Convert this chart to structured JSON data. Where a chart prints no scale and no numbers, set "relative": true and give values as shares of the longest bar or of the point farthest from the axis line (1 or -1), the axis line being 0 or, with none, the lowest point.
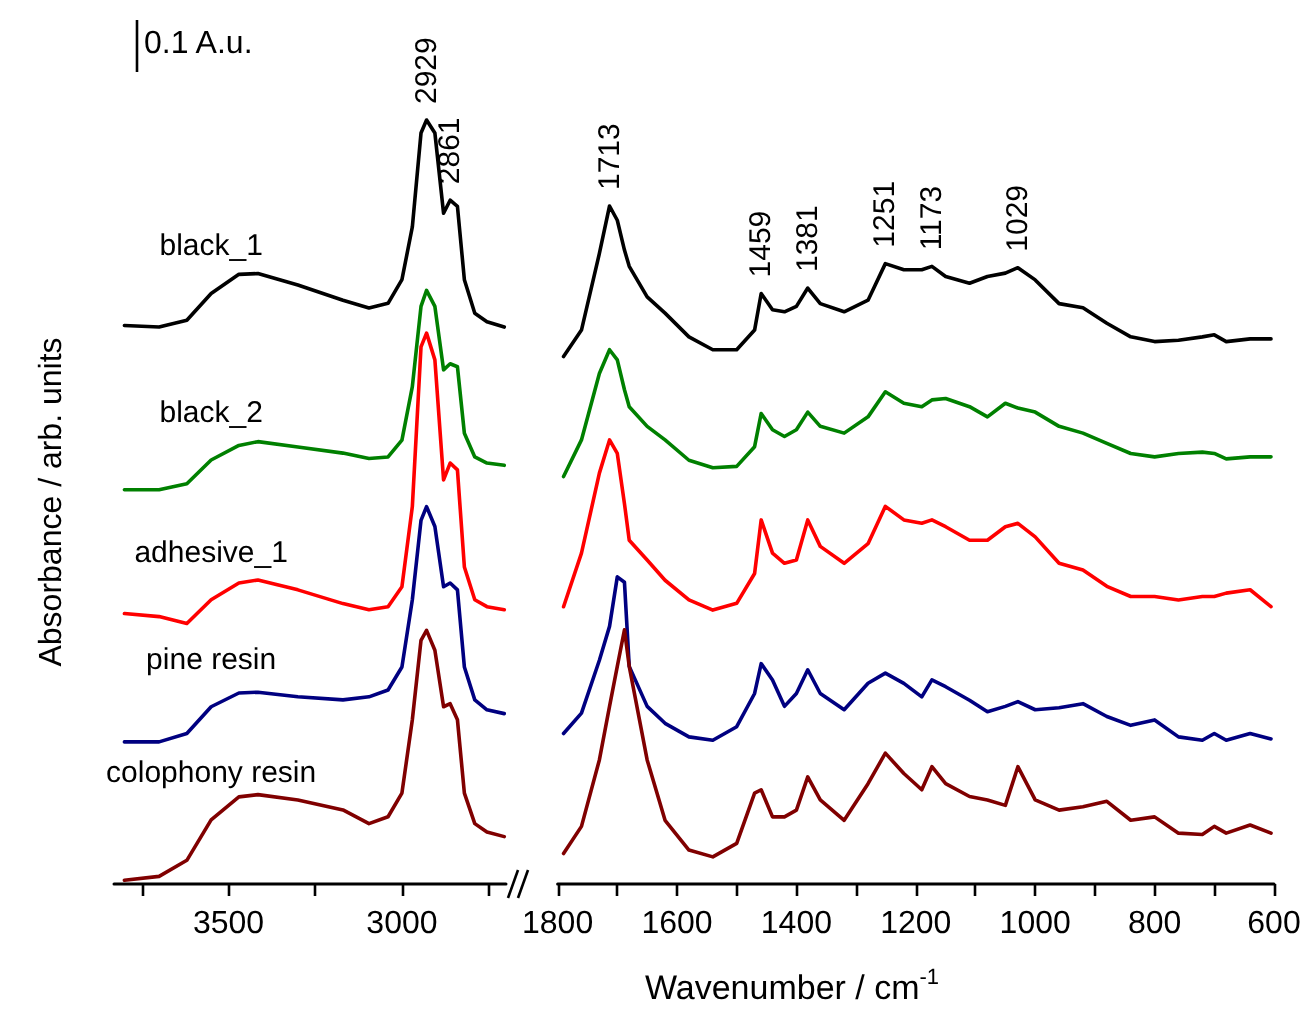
{
  "chart_data": [
    {
      "type": "line",
      "ylabel": "Absorbance / arb. units",
      "relative": true,
      "xlim": [
        3830,
        2700
      ],
      "xticks": [
        {
          "value": 3750,
          "label": null
        },
        3500,
        {
          "value": 3250,
          "label": null
        },
        3000,
        {
          "value": 2750,
          "label": null
        }
      ],
      "x": [
        3800,
        3700,
        3620,
        3550,
        3470,
        3415,
        3300,
        3170,
        3095,
        3040,
        3000,
        2970,
        2945,
        2929,
        2905,
        2880,
        2861,
        2840,
        2820,
        2790,
        2755,
        2705
      ],
      "series": [
        {
          "name": "black_1",
          "color": "#000000",
          "values": [
            0.731,
            0.729,
            0.738,
            0.773,
            0.798,
            0.799,
            0.784,
            0.764,
            0.754,
            0.76,
            0.791,
            0.86,
            0.983,
            1,
            0.983,
            0.878,
            0.895,
            0.887,
            0.791,
            0.747,
            0.736,
            0.729
          ]
        },
        {
          "name": "black_2",
          "color": "#008000",
          "values": [
            0.516,
            0.516,
            0.524,
            0.555,
            0.574,
            0.579,
            0.572,
            0.564,
            0.557,
            0.559,
            0.581,
            0.651,
            0.756,
            0.777,
            0.756,
            0.673,
            0.681,
            0.677,
            0.59,
            0.559,
            0.551,
            0.548
          ]
        },
        {
          "name": "adhesive_1",
          "color": "#ff0000",
          "values": [
            0.354,
            0.35,
            0.341,
            0.372,
            0.394,
            0.398,
            0.385,
            0.367,
            0.359,
            0.363,
            0.389,
            0.494,
            0.703,
            0.721,
            0.686,
            0.529,
            0.551,
            0.542,
            0.415,
            0.372,
            0.363,
            0.359
          ]
        },
        {
          "name": "pine resin",
          "color": "#000080",
          "values": [
            0.186,
            0.186,
            0.197,
            0.232,
            0.25,
            0.251,
            0.245,
            0.241,
            0.245,
            0.254,
            0.284,
            0.372,
            0.476,
            0.494,
            0.468,
            0.389,
            0.394,
            0.385,
            0.284,
            0.241,
            0.228,
            0.223
          ]
        },
        {
          "name": "colophony resin",
          "color": "#800000",
          "values": [
            0.005,
            0.01,
            0.031,
            0.084,
            0.114,
            0.117,
            0.11,
            0.097,
            0.079,
            0.088,
            0.119,
            0.215,
            0.319,
            0.332,
            0.306,
            0.232,
            0.236,
            0.215,
            0.119,
            0.079,
            0.068,
            0.062
          ]
        }
      ],
      "annotations": [
        "0.1 A.u.",
        {
          "text": "2929",
          "x": 2929,
          "y": 1
        },
        {
          "text": "2861",
          "x": 2861,
          "y": 0.895
        }
      ]
    },
    {
      "type": "line",
      "xlabel": "Wavenumber / cm$^{-1}$",
      "relative": true,
      "xlim": [
        1800,
        600
      ],
      "xticks": [
        1800,
        {
          "value": 1700,
          "label": null
        },
        1600,
        {
          "value": 1500,
          "label": null
        },
        1400,
        {
          "value": 1300,
          "label": null
        },
        1200,
        {
          "value": 1100,
          "label": null
        },
        1000,
        {
          "value": 900,
          "label": null
        },
        800,
        {
          "value": 700,
          "label": null
        },
        600
      ],
      "x": [
        1790,
        1760,
        1730,
        1713,
        1700,
        1688,
        1680,
        1650,
        1620,
        1580,
        1540,
        1500,
        1470,
        1459,
        1440,
        1420,
        1400,
        1381,
        1360,
        1320,
        1280,
        1251,
        1220,
        1190,
        1173,
        1150,
        1110,
        1080,
        1050,
        1029,
        1000,
        960,
        920,
        880,
        840,
        800,
        760,
        720,
        700,
        680,
        640,
        605
      ],
      "series": [
        {
          "color": "#000000",
          "values": [
            0.778,
            0.817,
            0.93,
            1,
            0.979,
            0.935,
            0.911,
            0.866,
            0.842,
            0.807,
            0.788,
            0.788,
            0.817,
            0.871,
            0.847,
            0.844,
            0.852,
            0.879,
            0.856,
            0.844,
            0.861,
            0.915,
            0.906,
            0.906,
            0.911,
            0.896,
            0.886,
            0.896,
            0.901,
            0.909,
            0.891,
            0.856,
            0.85,
            0.827,
            0.807,
            0.8,
            0.802,
            0.807,
            0.81,
            0.8,
            0.804,
            0.804
          ]
        },
        {
          "color": "#008000",
          "values": [
            0.601,
            0.655,
            0.753,
            0.788,
            0.773,
            0.729,
            0.704,
            0.675,
            0.655,
            0.625,
            0.614,
            0.616,
            0.645,
            0.694,
            0.67,
            0.66,
            0.67,
            0.696,
            0.675,
            0.665,
            0.689,
            0.726,
            0.709,
            0.704,
            0.714,
            0.716,
            0.704,
            0.689,
            0.709,
            0.702,
            0.696,
            0.675,
            0.665,
            0.65,
            0.635,
            0.63,
            0.635,
            0.637,
            0.635,
            0.627,
            0.63,
            0.63
          ]
        },
        {
          "color": "#ff0000",
          "values": [
            0.409,
            0.488,
            0.606,
            0.655,
            0.635,
            0.561,
            0.507,
            0.478,
            0.448,
            0.419,
            0.404,
            0.414,
            0.458,
            0.537,
            0.488,
            0.473,
            0.478,
            0.537,
            0.498,
            0.473,
            0.502,
            0.557,
            0.537,
            0.532,
            0.537,
            0.527,
            0.507,
            0.507,
            0.527,
            0.532,
            0.512,
            0.473,
            0.463,
            0.439,
            0.424,
            0.424,
            0.419,
            0.424,
            0.424,
            0.429,
            0.434,
            0.409
          ]
        },
        {
          "color": "#000080",
          "values": [
            0.222,
            0.252,
            0.33,
            0.38,
            0.453,
            0.445,
            0.321,
            0.262,
            0.237,
            0.217,
            0.212,
            0.232,
            0.281,
            0.325,
            0.301,
            0.262,
            0.281,
            0.316,
            0.281,
            0.257,
            0.296,
            0.311,
            0.296,
            0.276,
            0.301,
            0.291,
            0.271,
            0.254,
            0.262,
            0.269,
            0.257,
            0.26,
            0.266,
            0.247,
            0.234,
            0.242,
            0.217,
            0.212,
            0.222,
            0.212,
            0.222,
            0.214
          ]
        },
        {
          "color": "#800000",
          "values": [
            0.045,
            0.085,
            0.183,
            0.262,
            0.321,
            0.375,
            0.321,
            0.183,
            0.094,
            0.05,
            0.04,
            0.06,
            0.134,
            0.139,
            0.099,
            0.099,
            0.109,
            0.158,
            0.124,
            0.094,
            0.148,
            0.193,
            0.163,
            0.139,
            0.173,
            0.148,
            0.129,
            0.124,
            0.116,
            0.173,
            0.124,
            0.109,
            0.114,
            0.122,
            0.094,
            0.099,
            0.075,
            0.073,
            0.085,
            0.075,
            0.087,
            0.075
          ]
        }
      ],
      "annotations": [
        {
          "text": "1713",
          "x": 1713,
          "y": 1
        },
        {
          "text": "1459",
          "x": 1459,
          "y": 0.871
        },
        {
          "text": "1381",
          "x": 1381,
          "y": 0.879
        },
        {
          "text": "1251",
          "x": 1251,
          "y": 0.915
        },
        {
          "text": "1173",
          "x": 1173,
          "y": 0.911
        },
        {
          "text": "1029",
          "x": 1029,
          "y": 0.909
        }
      ]
    }
  ]
}
